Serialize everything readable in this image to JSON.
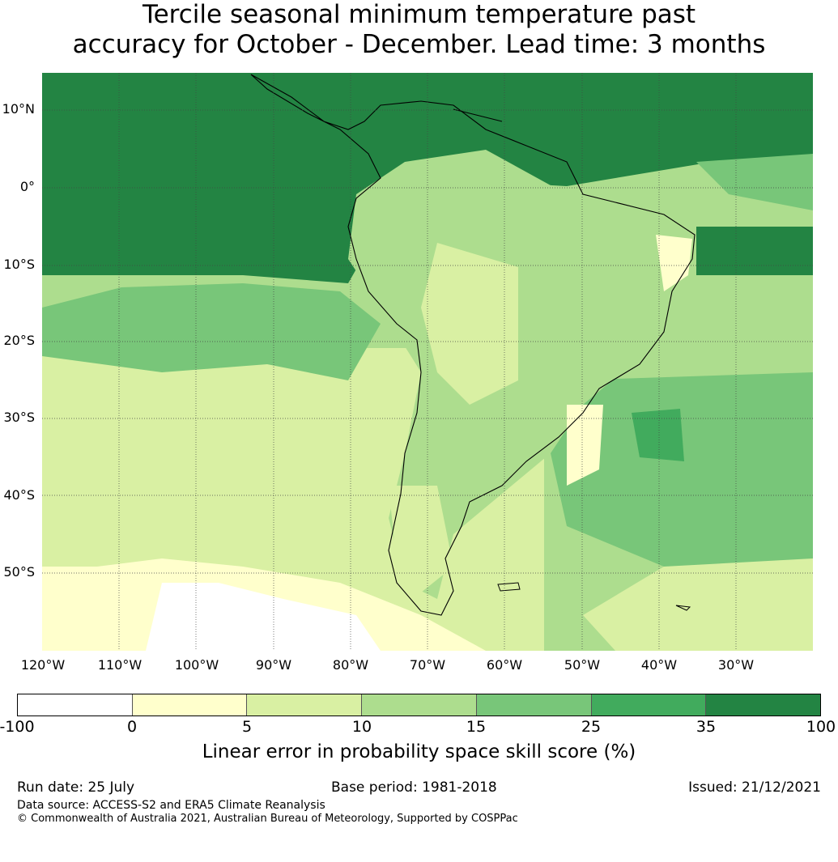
{
  "title": {
    "line1": "Tercile seasonal minimum temperature past",
    "line2": "accuracy for October - December. Lead time: 3 months"
  },
  "map": {
    "region": "South America and surrounding oceans",
    "lat_labels": [
      "10°N",
      "0°",
      "10°S",
      "20°S",
      "30°S",
      "40°S",
      "50°S"
    ],
    "lon_labels": [
      "120°W",
      "110°W",
      "100°W",
      "90°W",
      "80°W",
      "70°W",
      "60°W",
      "50°W",
      "40°W",
      "30°W"
    ],
    "land_outline_color": "#000000",
    "gridline_style": "dotted"
  },
  "legend": {
    "ticks": [
      "-100",
      "0",
      "5",
      "10",
      "15",
      "25",
      "35",
      "100"
    ],
    "colors": [
      "#ffffff",
      "#ffffcc",
      "#d9f0a3",
      "#addd8e",
      "#78c679",
      "#41ab5d",
      "#238443"
    ],
    "label": "Linear error in probability space skill score (%)"
  },
  "footer": {
    "run_date": "Run date: 25 July",
    "base_period": "Base period: 1981-2018",
    "issued": "Issued: 21/12/2021",
    "data_source": "Data source: ACCESS-S2 and ERA5 Climate Reanalysis",
    "copyright": "© Commonwealth of Australia 2021, Australian Bureau of Meteorology, Supported by COSPPac"
  }
}
